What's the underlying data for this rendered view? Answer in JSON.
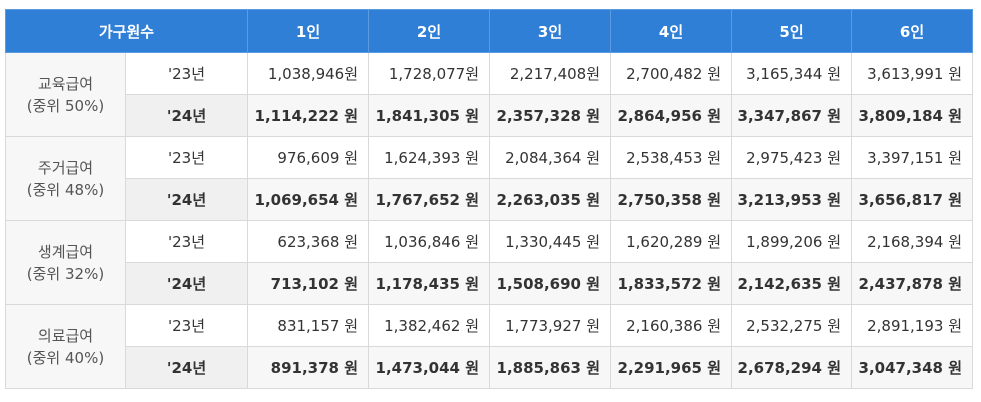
{
  "table": {
    "headers": [
      "가구원수",
      "1인",
      "2인",
      "3인",
      "4인",
      "5인",
      "6인"
    ],
    "groups": [
      {
        "name": "교육급여",
        "sub": "(중위 50%)",
        "rows": [
          {
            "year": "'23년",
            "values": [
              "1,038,946원",
              "1,728,077원",
              "2,217,408원",
              "2,700,482 원",
              "3,165,344 원",
              "3,613,991 원"
            ]
          },
          {
            "year": "'24년",
            "values": [
              "1,114,222 원",
              "1,841,305 원",
              "2,357,328 원",
              "2,864,956 원",
              "3,347,867 원",
              "3,809,184 원"
            ]
          }
        ]
      },
      {
        "name": "주거급여",
        "sub": "(중위 48%)",
        "rows": [
          {
            "year": "'23년",
            "values": [
              "976,609 원",
              "1,624,393 원",
              "2,084,364 원",
              "2,538,453 원",
              "2,975,423 원",
              "3,397,151 원"
            ]
          },
          {
            "year": "'24년",
            "values": [
              "1,069,654 원",
              "1,767,652 원",
              "2,263,035 원",
              "2,750,358 원",
              "3,213,953 원",
              "3,656,817 원"
            ]
          }
        ]
      },
      {
        "name": "생계급여",
        "sub": "(중위 32%)",
        "rows": [
          {
            "year": "'23년",
            "values": [
              "623,368 원",
              "1,036,846 원",
              "1,330,445 원",
              "1,620,289 원",
              "1,899,206 원",
              "2,168,394 원"
            ]
          },
          {
            "year": "'24년",
            "values": [
              "713,102 원",
              "1,178,435 원",
              "1,508,690 원",
              "1,833,572 원",
              "2,142,635 원",
              "2,437,878 원"
            ]
          }
        ]
      },
      {
        "name": "의료급여",
        "sub": "(중위 40%)",
        "rows": [
          {
            "year": "'23년",
            "values": [
              "831,157 원",
              "1,382,462 원",
              "1,773,927 원",
              "2,160,386 원",
              "2,532,275 원",
              "2,891,193 원"
            ]
          },
          {
            "year": "'24년",
            "values": [
              "891,378 원",
              "1,473,044 원",
              "1,885,863 원",
              "2,291,965 원",
              "2,678,294 원",
              "3,047,348 원"
            ]
          }
        ]
      }
    ]
  }
}
